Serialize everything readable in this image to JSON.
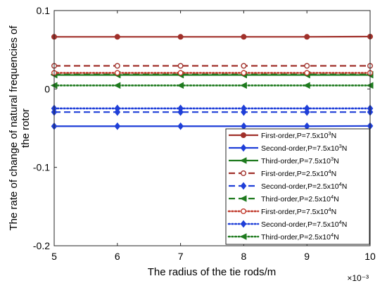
{
  "chart_data": {
    "type": "line",
    "xlabel": "The radius of the tie rods/m",
    "ylabel_lines": [
      "The rate of change of natural frequencies of",
      "the rotor"
    ],
    "x_exponent": "×10⁻³",
    "x": [
      5,
      6,
      7,
      8,
      9,
      10
    ],
    "x_ticks": [
      "5",
      "6",
      "7",
      "8",
      "9",
      "10"
    ],
    "xlim": [
      5,
      10
    ],
    "y_ticks": [
      {
        "value": 0.1,
        "label": "0.1"
      },
      {
        "value": 0,
        "label": "0"
      },
      {
        "value": -0.1,
        "label": "-0.1"
      },
      {
        "value": -0.2,
        "label": "-0.2"
      }
    ],
    "ylim": [
      -0.2,
      0.1
    ],
    "grid": false,
    "legend_position": "bottom-right",
    "series": [
      {
        "legend": {
          "pre": "First-order,P=7.5x10",
          "sup": "3",
          "post": "N"
        },
        "values": [
          0.0665,
          0.0665,
          0.0665,
          0.0665,
          0.0665,
          0.0668
        ],
        "color": "#A0302A",
        "dash": "solid",
        "marker": "filled-circle"
      },
      {
        "legend": {
          "pre": "Second-order,P=7.5x10",
          "sup": "3",
          "post": "N"
        },
        "values": [
          -0.0475,
          -0.0475,
          -0.0475,
          -0.0475,
          -0.0475,
          -0.0472
        ],
        "color": "#1F3FD8",
        "dash": "solid",
        "marker": "filled-diamond"
      },
      {
        "legend": {
          "pre": "Third-order,P=7.5x10",
          "sup": "3",
          "post": "N"
        },
        "values": [
          0.0178,
          0.0178,
          0.0178,
          0.0178,
          0.0178,
          0.0178
        ],
        "color": "#1E7A1E",
        "dash": "solid",
        "marker": "left-triangle"
      },
      {
        "legend": {
          "pre": "First-order,P=2.5x10",
          "sup": "4",
          "post": "N"
        },
        "values": [
          0.0295,
          0.0295,
          0.0295,
          0.0295,
          0.0295,
          0.0295
        ],
        "color": "#A0302A",
        "dash": "dashed",
        "marker": "open-circle"
      },
      {
        "legend": {
          "pre": "Second-order,P=2.5x10",
          "sup": "4",
          "post": "N"
        },
        "values": [
          -0.0295,
          -0.0295,
          -0.0295,
          -0.0295,
          -0.0295,
          -0.0295
        ],
        "color": "#1F3FD8",
        "dash": "dashed",
        "marker": "filled-diamond"
      },
      {
        "legend": {
          "pre": "Third-order,P=2.5x10",
          "sup": "4",
          "post": "N"
        },
        "values": [
          0.0185,
          0.0185,
          0.0185,
          0.0185,
          0.0185,
          0.0185
        ],
        "color": "#1E7A1E",
        "dash": "dashed",
        "marker": "left-triangle"
      },
      {
        "legend": {
          "pre": "First-order,P=7.5x10",
          "sup": "4",
          "post": "N"
        },
        "values": [
          0.0205,
          0.0205,
          0.0205,
          0.0205,
          0.0205,
          0.0205
        ],
        "color": "#C0392B",
        "dash": "dotted",
        "marker": "open-circle"
      },
      {
        "legend": {
          "pre": "Second-order,P=7.5x10",
          "sup": "4",
          "post": "N"
        },
        "values": [
          -0.0248,
          -0.0248,
          -0.0248,
          -0.0248,
          -0.0248,
          -0.0248
        ],
        "color": "#1F3FD8",
        "dash": "dotted",
        "marker": "filled-diamond"
      },
      {
        "legend": {
          "pre": "Third-order,P=2.5x10",
          "sup": "4",
          "post": "N"
        },
        "values": [
          0.0045,
          0.0045,
          0.0045,
          0.0045,
          0.0045,
          0.0045
        ],
        "color": "#1E7A1E",
        "dash": "dotted",
        "marker": "left-triangle"
      }
    ]
  }
}
